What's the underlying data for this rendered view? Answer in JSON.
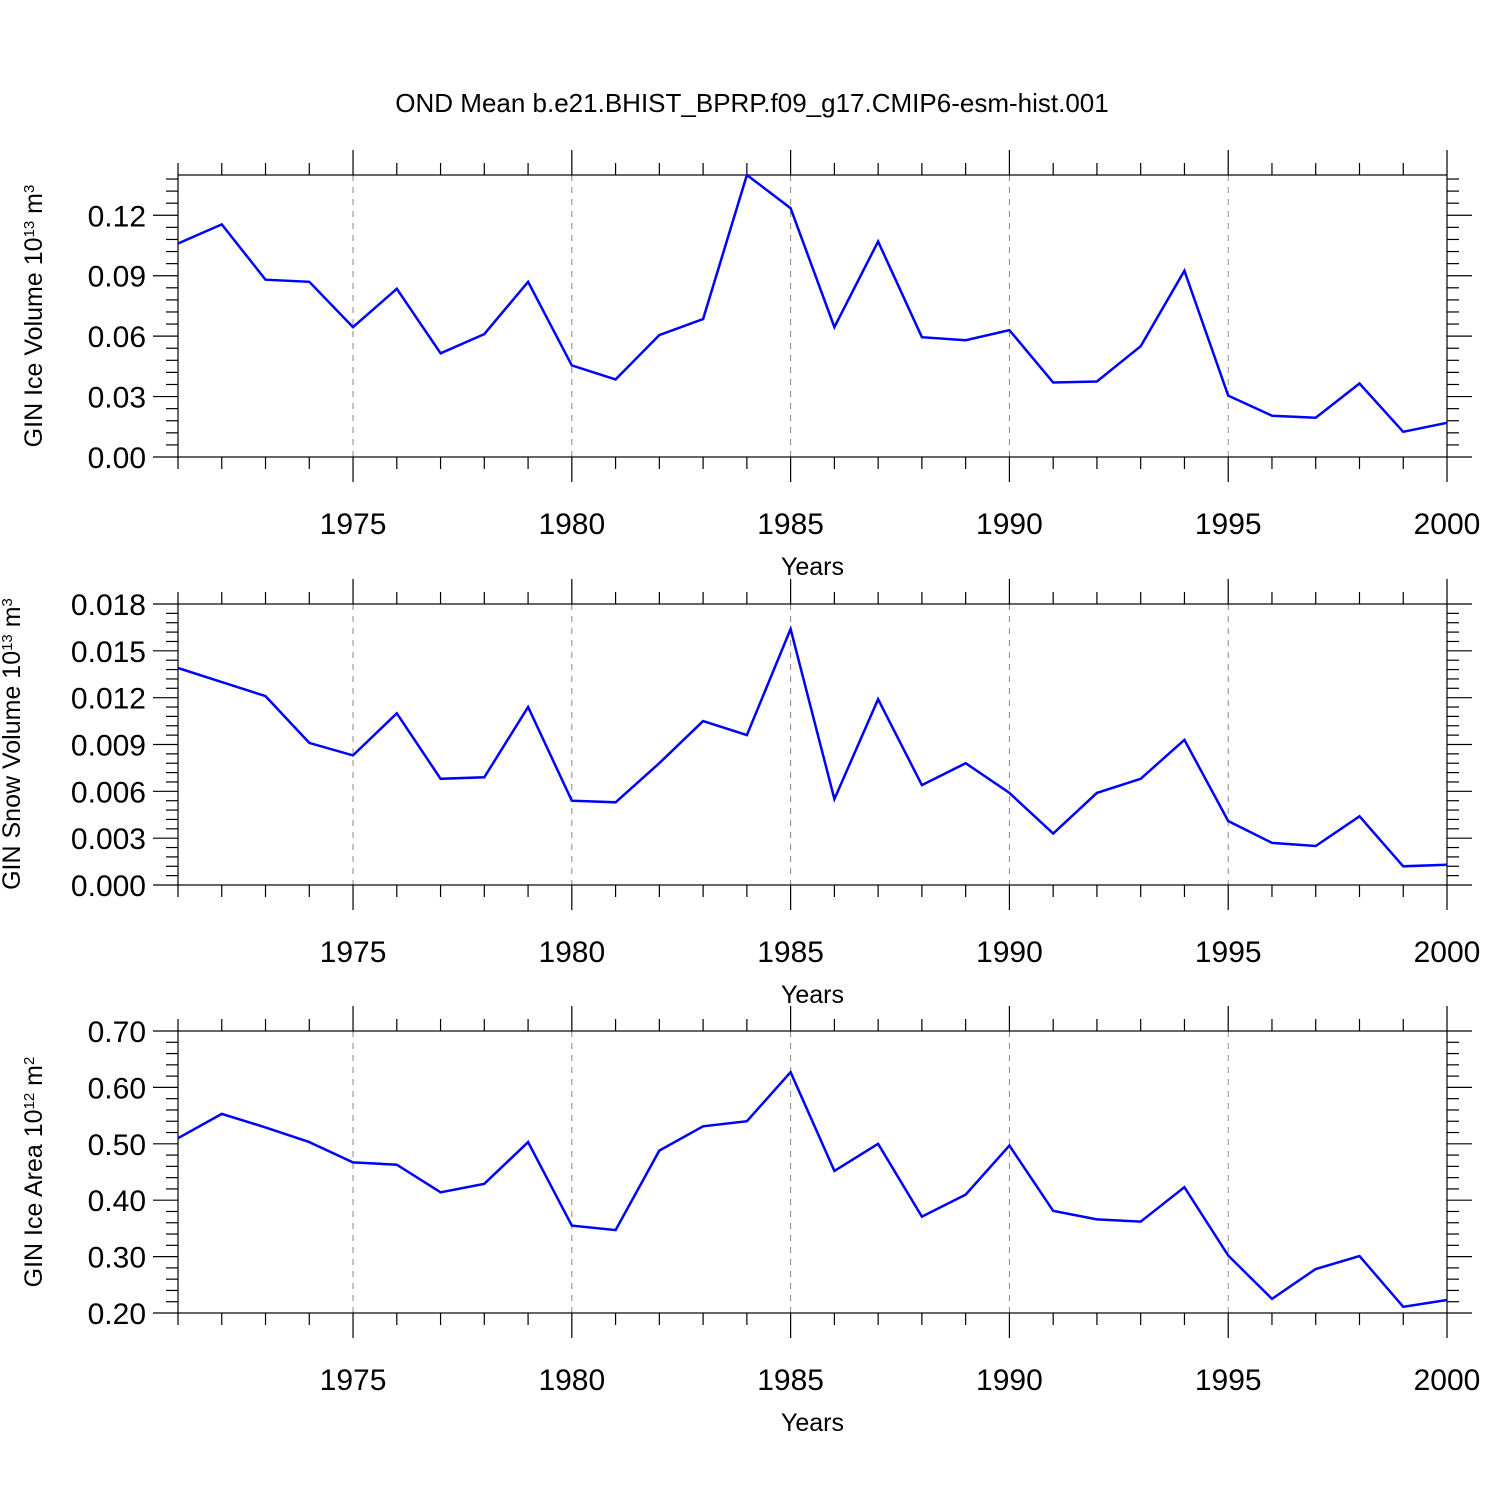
{
  "title": "OND Mean b.e21.BHIST_BPRP.f09_g17.CMIP6-esm-hist.001",
  "chart_data": [
    {
      "type": "line",
      "ylabel": {
        "base": "GIN Ice Volume 10",
        "exp": "13",
        "unit": " m",
        "unit_exp": "3"
      },
      "xlabel": "Years",
      "xlim": [
        1971,
        2000
      ],
      "ylim": [
        0,
        0.14
      ],
      "yticks": [
        0.0,
        0.03,
        0.06,
        0.09,
        0.12
      ],
      "yticks_labels": [
        "0.00",
        "0.03",
        "0.06",
        "0.09",
        "0.12"
      ],
      "xticks": [
        1975,
        1980,
        1985,
        1990,
        1995,
        2000
      ],
      "xticks_labels": [
        "1975",
        "1980",
        "1985",
        "1990",
        "1995",
        "2000"
      ],
      "grid": "vertical dashed at labeled years",
      "series": [
        {
          "color": "#0000ff",
          "x": [
            1971,
            1972,
            1973,
            1974,
            1975,
            1976,
            1977,
            1978,
            1979,
            1980,
            1981,
            1982,
            1983,
            1984,
            1985,
            1986,
            1987,
            1988,
            1989,
            1990,
            1991,
            1992,
            1993,
            1994,
            1995,
            1996,
            1997,
            1998,
            1999,
            2000
          ],
          "y": [
            0.106,
            0.1155,
            0.088,
            0.087,
            0.0645,
            0.0835,
            0.0515,
            0.061,
            0.087,
            0.0455,
            0.0385,
            0.0605,
            0.0685,
            0.14,
            0.1235,
            0.0645,
            0.107,
            0.0595,
            0.058,
            0.063,
            0.037,
            0.0375,
            0.055,
            0.0925,
            0.0305,
            0.0205,
            0.0195,
            0.0365,
            0.0125,
            0.017
          ]
        }
      ]
    },
    {
      "type": "line",
      "ylabel": {
        "base": "GIN Snow Volume 10",
        "exp": "13",
        "unit": " m",
        "unit_exp": "3"
      },
      "xlabel": "Years",
      "xlim": [
        1971,
        2000
      ],
      "ylim": [
        0,
        0.018
      ],
      "yticks": [
        0.0,
        0.003,
        0.006,
        0.009,
        0.012,
        0.015,
        0.018
      ],
      "yticks_labels": [
        "0.000",
        "0.003",
        "0.006",
        "0.009",
        "0.012",
        "0.015",
        "0.018"
      ],
      "xticks": [
        1975,
        1980,
        1985,
        1990,
        1995,
        2000
      ],
      "xticks_labels": [
        "1975",
        "1980",
        "1985",
        "1990",
        "1995",
        "2000"
      ],
      "grid": "vertical dashed at labeled years",
      "series": [
        {
          "color": "#0000ff",
          "x": [
            1971,
            1972,
            1973,
            1974,
            1975,
            1976,
            1977,
            1978,
            1979,
            1980,
            1981,
            1982,
            1983,
            1984,
            1985,
            1986,
            1987,
            1988,
            1989,
            1990,
            1991,
            1992,
            1993,
            1994,
            1995,
            1996,
            1997,
            1998,
            1999,
            2000
          ],
          "y": [
            0.0139,
            0.013,
            0.0121,
            0.0091,
            0.0083,
            0.011,
            0.0068,
            0.0069,
            0.0114,
            0.0054,
            0.0053,
            0.0078,
            0.0105,
            0.0096,
            0.0164,
            0.0055,
            0.0119,
            0.0064,
            0.0078,
            0.0059,
            0.0033,
            0.0059,
            0.0068,
            0.0093,
            0.0041,
            0.0027,
            0.0025,
            0.0044,
            0.0012,
            0.0013
          ]
        }
      ]
    },
    {
      "type": "line",
      "ylabel": {
        "base": "GIN Ice Area 10",
        "exp": "12",
        "unit": " m",
        "unit_exp": "2"
      },
      "xlabel": "Years",
      "xlim": [
        1971,
        2000
      ],
      "ylim": [
        0.2,
        0.7
      ],
      "yticks": [
        0.2,
        0.3,
        0.4,
        0.5,
        0.6,
        0.7
      ],
      "yticks_labels": [
        "0.20",
        "0.30",
        "0.40",
        "0.50",
        "0.60",
        "0.70"
      ],
      "xticks": [
        1975,
        1980,
        1985,
        1990,
        1995,
        2000
      ],
      "xticks_labels": [
        "1975",
        "1980",
        "1985",
        "1990",
        "1995",
        "2000"
      ],
      "grid": "vertical dashed at labeled years",
      "series": [
        {
          "color": "#0000ff",
          "x": [
            1971,
            1972,
            1973,
            1974,
            1975,
            1976,
            1977,
            1978,
            1979,
            1980,
            1981,
            1982,
            1983,
            1984,
            1985,
            1986,
            1987,
            1988,
            1989,
            1990,
            1991,
            1992,
            1993,
            1994,
            1995,
            1996,
            1997,
            1998,
            1999,
            2000
          ],
          "y": [
            0.51,
            0.553,
            0.529,
            0.503,
            0.467,
            0.463,
            0.414,
            0.429,
            0.503,
            0.355,
            0.347,
            0.488,
            0.531,
            0.54,
            0.627,
            0.452,
            0.5,
            0.371,
            0.41,
            0.497,
            0.381,
            0.366,
            0.362,
            0.423,
            0.302,
            0.225,
            0.278,
            0.301,
            0.211,
            0.223
          ]
        }
      ]
    }
  ]
}
